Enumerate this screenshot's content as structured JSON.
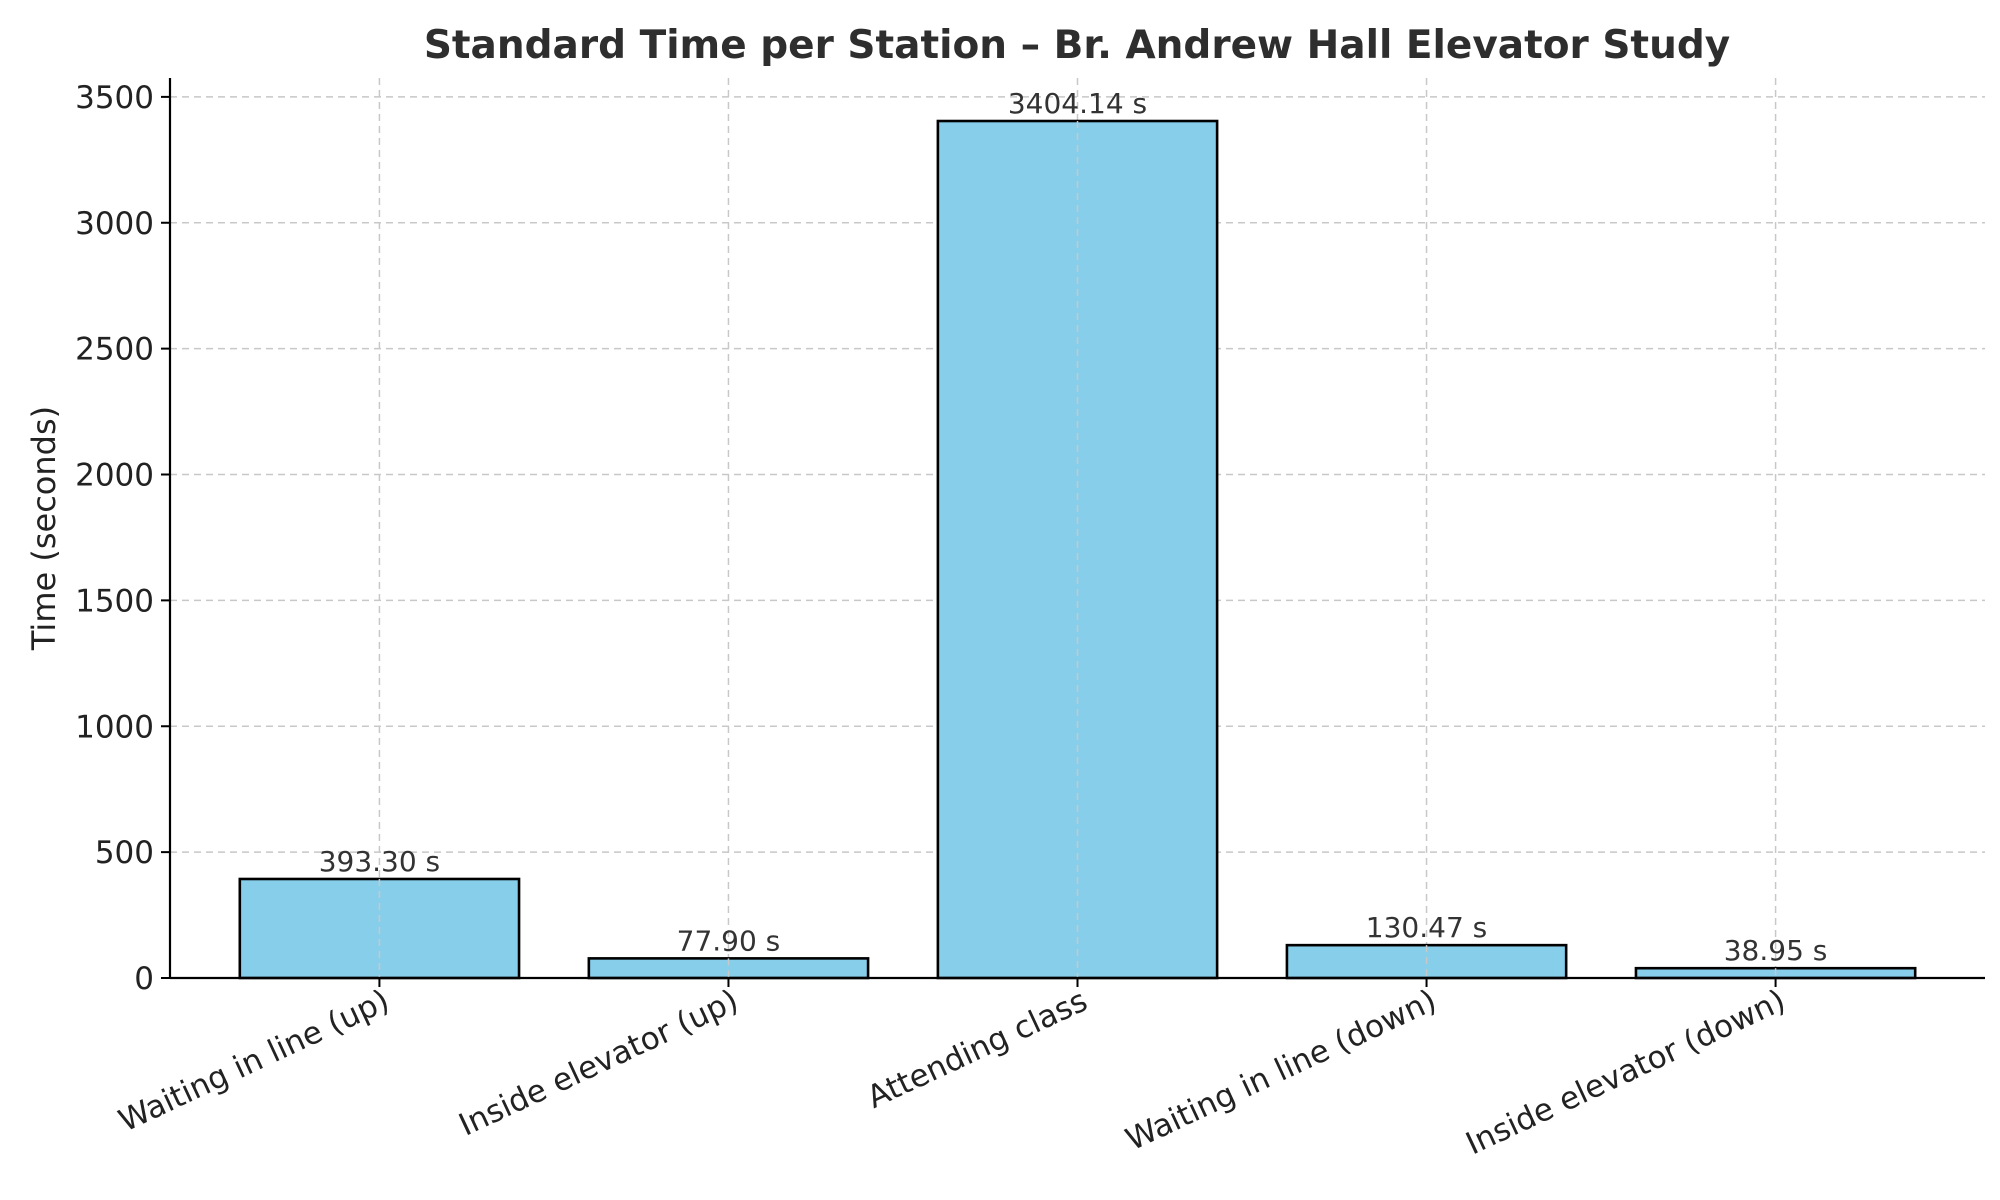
{
  "chart_data": {
    "type": "bar",
    "title": "Standard Time per Station – Br. Andrew Hall Elevator Study",
    "xlabel": "",
    "ylabel": "Time (seconds)",
    "categories": [
      "Waiting in line (up)",
      "Inside elevator (up)",
      "Attending class",
      "Waiting in line (down)",
      "Inside elevator (down)"
    ],
    "values": [
      393.3,
      77.9,
      3404.14,
      130.47,
      38.95
    ],
    "data_labels": [
      "393.30 s",
      "77.90 s",
      "3404.14 s",
      "130.47 s",
      "38.95 s"
    ],
    "ylim": [
      0,
      3575
    ],
    "yticks": [
      0,
      500,
      1000,
      1500,
      2000,
      2500,
      3000,
      3500
    ],
    "ytick_labels": [
      "0",
      "500",
      "1000",
      "1500",
      "2000",
      "2500",
      "3000",
      "3500"
    ],
    "grid": true,
    "bar_color": "#87CEEB",
    "bar_edge_color": "#000000"
  }
}
